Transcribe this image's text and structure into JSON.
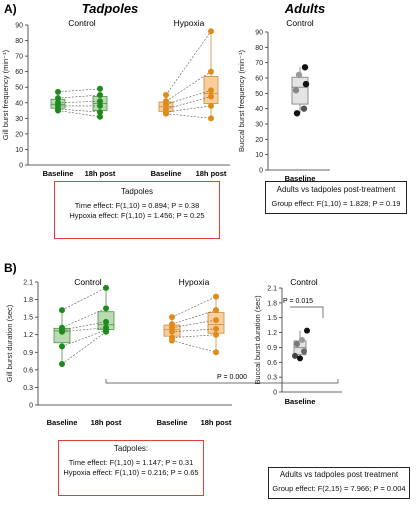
{
  "panel_a": {
    "letter": "A)",
    "group_titles": {
      "tadpoles": "Tadpoles",
      "adults": "Adults"
    },
    "tadpole_stats": {
      "header": "Tadpoles",
      "time_effect": "Time effect: F(1,10) = 0.894; P = 0.38",
      "hypoxia_effect": "Hypoxia effect: F(1,10) = 1.456; P = 0.25"
    },
    "adult_stats": {
      "header": "Adults vs tadpoles post-treatment",
      "group_effect": "Group effect: F(1,10) = 1.828; P = 0.19"
    }
  },
  "panel_b": {
    "letter": "B)",
    "tadpole_stats": {
      "header": "Tadpoles:",
      "time_effect": "Time effect: F(1,10) = 1.147; P = 0.31",
      "hypoxia_effect": "Hypoxia effect: F(1,10) = 0.216; P = 0.65"
    },
    "adult_stats": {
      "header": "Adults vs tadpoles post treatment",
      "group_effect": "Group effect: F(2,15) = 7.966; P = 0.004"
    }
  },
  "colors": {
    "control_fill": "#b8dcb0",
    "control_point": "#1e8a1e",
    "hypoxia_fill": "#f8cf9c",
    "hypoxia_point": "#e08a1a",
    "adult_fill": "#e4e4e4",
    "stats_border_red": "#e0403a"
  },
  "chart_data": [
    {
      "id": "a_tadpole",
      "type": "box",
      "subplots": [
        "Control",
        "Hypoxia"
      ],
      "categories": [
        "Baseline",
        "18h post"
      ],
      "ylabel": "Gill burst frequency (min⁻¹)",
      "ylim": [
        0,
        90
      ],
      "yticks": [
        "0",
        "10",
        "20",
        "30",
        "40",
        "50",
        "60",
        "70",
        "80",
        "90"
      ],
      "series": [
        {
          "name": "Control",
          "baseline": [
            47,
            43,
            40,
            38,
            36,
            35
          ],
          "post": [
            49,
            45,
            41,
            38,
            34,
            31
          ]
        },
        {
          "name": "Hypoxia",
          "baseline": [
            45,
            41,
            39,
            36,
            34,
            33
          ],
          "post": [
            86,
            60,
            48,
            44,
            38,
            30
          ]
        }
      ]
    },
    {
      "id": "a_adult",
      "type": "box",
      "title": "Control",
      "categories": [
        "Baseline"
      ],
      "ylabel": "Buccal burst frequency (min⁻¹)",
      "ylim": [
        0,
        90
      ],
      "yticks": [
        "0",
        "10",
        "20",
        "30",
        "40",
        "50",
        "60",
        "70",
        "80",
        "90"
      ],
      "values": [
        67,
        62,
        56,
        52,
        40,
        37
      ]
    },
    {
      "id": "b_tadpole",
      "type": "box",
      "subplots": [
        "Control",
        "Hypoxia"
      ],
      "categories": [
        "Baseline",
        "18h post"
      ],
      "ylabel": "Gill burst duration (sec)",
      "ylim": [
        0,
        2.1
      ],
      "yticks": [
        "0",
        "0.3",
        "0.6",
        "0.9",
        "1.2",
        "1.5",
        "1.8",
        "2.1"
      ],
      "annotation": "P = 0.000",
      "series": [
        {
          "name": "Control",
          "baseline": [
            1.62,
            1.32,
            1.28,
            1.25,
            1.0,
            0.7
          ],
          "post": [
            2.0,
            1.65,
            1.42,
            1.32,
            1.28,
            1.25
          ]
        },
        {
          "name": "Hypoxia",
          "baseline": [
            1.5,
            1.38,
            1.32,
            1.25,
            1.15,
            1.1
          ],
          "post": [
            1.85,
            1.62,
            1.45,
            1.3,
            1.2,
            0.9
          ]
        }
      ]
    },
    {
      "id": "b_adult",
      "type": "box",
      "title": "Control",
      "categories": [
        "Baseline"
      ],
      "ylabel": "Buccal burst duration (sec)",
      "ylim": [
        0,
        2.1
      ],
      "yticks": [
        "0",
        "0.3",
        "0.6",
        "0.9",
        "1.2",
        "1.5",
        "1.8",
        "2.1"
      ],
      "annotation": "P = 0.015",
      "values": [
        1.24,
        1.05,
        0.97,
        0.82,
        0.73,
        0.68
      ]
    }
  ]
}
